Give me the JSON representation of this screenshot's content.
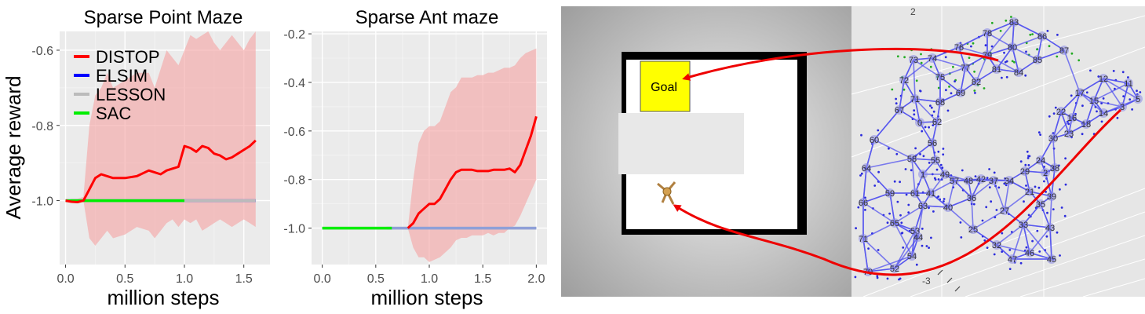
{
  "chart_data": [
    {
      "type": "line",
      "title": "Sparse Point Maze",
      "xlabel": "million steps",
      "ylabel": "Average reward",
      "xlim": [
        -0.05,
        1.72
      ],
      "ylim": [
        -1.17,
        -0.55
      ],
      "xticks": [
        0.0,
        0.5,
        1.0,
        1.5
      ],
      "xtick_labels": [
        "0.0",
        "0.5",
        "1.0",
        "1.5"
      ],
      "yticks": [
        -1.0,
        -0.8,
        -0.6
      ],
      "ytick_labels": [
        "-1.0",
        "-0.8",
        "-0.6"
      ],
      "grid": true,
      "legend": "top-left",
      "series": [
        {
          "name": "DISTOP",
          "color": "#ff0000",
          "x": [
            0.0,
            0.05,
            0.1,
            0.15,
            0.2,
            0.25,
            0.3,
            0.35,
            0.4,
            0.5,
            0.6,
            0.7,
            0.75,
            0.8,
            0.85,
            0.9,
            0.95,
            1.0,
            1.05,
            1.1,
            1.15,
            1.2,
            1.25,
            1.3,
            1.35,
            1.4,
            1.45,
            1.5,
            1.55,
            1.6
          ],
          "y": [
            -1.0,
            -1.003,
            -1.004,
            -1.0,
            -0.97,
            -0.94,
            -0.93,
            -0.935,
            -0.94,
            -0.94,
            -0.935,
            -0.92,
            -0.925,
            -0.93,
            -0.92,
            -0.915,
            -0.91,
            -0.855,
            -0.86,
            -0.87,
            -0.855,
            -0.86,
            -0.875,
            -0.88,
            -0.89,
            -0.885,
            -0.875,
            -0.865,
            -0.855,
            -0.84
          ],
          "band_lower": [
            -1.0,
            -1.005,
            -1.005,
            -1.0,
            -1.1,
            -1.12,
            -1.1,
            -1.08,
            -1.1,
            -1.09,
            -1.07,
            -1.08,
            -1.1,
            -1.08,
            -1.06,
            -1.05,
            -1.07,
            -1.05,
            -1.06,
            -1.05,
            -1.08,
            -1.07,
            -1.06,
            -1.05,
            -1.06,
            -1.07,
            -1.06,
            -1.05,
            -1.06,
            -1.07
          ],
          "band_upper": [
            -1.0,
            -0.995,
            -0.995,
            -0.99,
            -0.8,
            -0.72,
            -0.7,
            -0.66,
            -0.7,
            -0.68,
            -0.66,
            -0.66,
            -0.7,
            -0.65,
            -0.6,
            -0.62,
            -0.64,
            -0.6,
            -0.56,
            -0.57,
            -0.56,
            -0.55,
            -0.58,
            -0.6,
            -0.58,
            -0.56,
            -0.58,
            -0.6,
            -0.57,
            -0.55
          ]
        },
        {
          "name": "ELSIM",
          "color": "#0000ff",
          "x": [
            0.0,
            1.6
          ],
          "y": [
            -1.0,
            -1.0
          ]
        },
        {
          "name": "LESSON",
          "color": "#bbbbbb",
          "x": [
            0.0,
            1.6
          ],
          "y": [
            -1.0,
            -1.0
          ]
        },
        {
          "name": "SAC",
          "color": "#00ee00",
          "x": [
            0.0,
            1.0
          ],
          "y": [
            -1.0,
            -1.0
          ]
        }
      ]
    },
    {
      "type": "line",
      "title": "Sparse Ant maze",
      "xlabel": "million steps",
      "ylabel": "",
      "xlim": [
        -0.1,
        2.1
      ],
      "ylim": [
        -1.15,
        -0.19
      ],
      "xticks": [
        0.0,
        0.5,
        1.0,
        1.5,
        2.0
      ],
      "xtick_labels": [
        "0.0",
        "0.5",
        "1.0",
        "1.5",
        "2.0"
      ],
      "yticks": [
        -1.0,
        -0.8,
        -0.6,
        -0.4,
        -0.2
      ],
      "ytick_labels": [
        "-1.0",
        "-0.8",
        "-0.6",
        "-0.4",
        "-0.2"
      ],
      "grid": true,
      "legend": "none",
      "series": [
        {
          "name": "DISTOP",
          "color": "#ff0000",
          "x": [
            0.8,
            0.85,
            0.9,
            0.95,
            1.0,
            1.05,
            1.1,
            1.15,
            1.2,
            1.25,
            1.3,
            1.35,
            1.4,
            1.45,
            1.5,
            1.55,
            1.6,
            1.65,
            1.7,
            1.75,
            1.8,
            1.85,
            1.9,
            1.95,
            2.0
          ],
          "y": [
            -1.0,
            -0.98,
            -0.94,
            -0.92,
            -0.9,
            -0.9,
            -0.88,
            -0.84,
            -0.8,
            -0.77,
            -0.76,
            -0.76,
            -0.76,
            -0.765,
            -0.765,
            -0.765,
            -0.76,
            -0.76,
            -0.76,
            -0.755,
            -0.77,
            -0.74,
            -0.68,
            -0.62,
            -0.54
          ],
          "band_lower": [
            -1.0,
            -1.08,
            -1.12,
            -1.12,
            -1.14,
            -1.13,
            -1.12,
            -1.1,
            -1.08,
            -1.05,
            -1.04,
            -1.04,
            -1.03,
            -1.03,
            -1.03,
            -1.02,
            -1.03,
            -1.02,
            -1.02,
            -1.0,
            -0.99,
            -0.95,
            -0.9,
            -0.85,
            -0.8
          ],
          "band_upper": [
            -1.0,
            -0.8,
            -0.65,
            -0.6,
            -0.58,
            -0.58,
            -0.56,
            -0.5,
            -0.44,
            -0.42,
            -0.38,
            -0.38,
            -0.38,
            -0.37,
            -0.37,
            -0.36,
            -0.36,
            -0.35,
            -0.34,
            -0.34,
            -0.33,
            -0.3,
            -0.28,
            -0.27,
            -0.26
          ]
        },
        {
          "name": "LESSON",
          "color": "#bbbbbb",
          "x": [
            0.0,
            2.0
          ],
          "y": [
            -1.0,
            -1.0
          ]
        },
        {
          "name": "ELSIM",
          "color": "#8fa0d8",
          "x": [
            0.6,
            2.0
          ],
          "y": [
            -1.0,
            -1.0
          ]
        },
        {
          "name": "SAC",
          "color": "#00ee00",
          "x": [
            0.0,
            0.65
          ],
          "y": [
            -1.0,
            -1.0
          ]
        }
      ]
    }
  ],
  "maze": {
    "goal_label": "Goal"
  },
  "graph": {
    "node_labels": [
      "83",
      "78",
      "86",
      "76",
      "79",
      "80",
      "87",
      "73",
      "74",
      "81",
      "85",
      "77",
      "84",
      "72",
      "75",
      "82",
      "71",
      "69",
      "68",
      "12",
      "11",
      "67",
      "62",
      "17",
      "15",
      "0",
      "22",
      "16",
      "18",
      "14",
      "3",
      "5",
      "23",
      "60",
      "56",
      "58",
      "55",
      "30",
      "24",
      "64",
      "2",
      "49",
      "57",
      "48",
      "42",
      "37",
      "34",
      "29",
      "38",
      "59",
      "61",
      "41",
      "1",
      "36",
      "21",
      "39",
      "66",
      "63",
      "40",
      "65",
      "53",
      "44",
      "27",
      "35",
      "43",
      "71",
      "25",
      "33",
      "32",
      "45",
      "46",
      "54",
      "47",
      "70",
      "52"
    ],
    "axis_labels": [
      "2",
      "-3"
    ]
  }
}
